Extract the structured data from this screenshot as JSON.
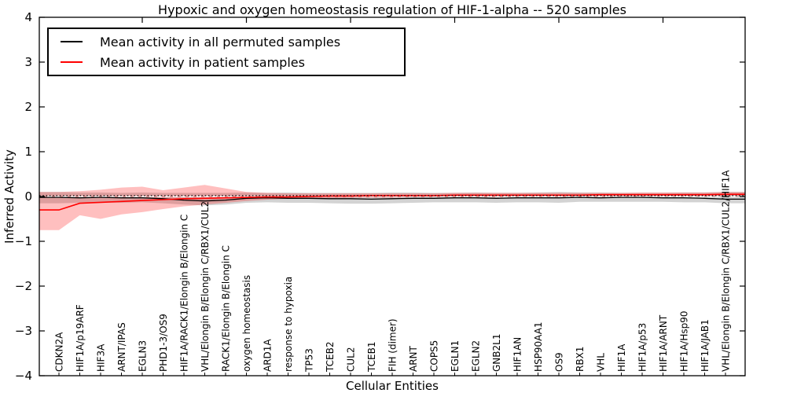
{
  "figure": {
    "background": "#ffffff"
  },
  "legend": {
    "entries": [
      {
        "label": "Mean activity in all permuted samples",
        "color": "#000000"
      },
      {
        "label": "Mean activity in patient samples",
        "color": "#ff0000"
      }
    ]
  },
  "chart_data": {
    "type": "line",
    "title": "Hypoxic and oxygen homeostasis regulation of HIF-1-alpha -- 520 samples",
    "xlabel": "Cellular Entities",
    "ylabel": "Inferred Activity",
    "ylim": [
      -4,
      4
    ],
    "yticks": [
      4,
      3,
      2,
      1,
      0,
      -1,
      -2,
      -3,
      -4
    ],
    "grid": false,
    "legend_position": "upper left",
    "categories": [
      "CDKN2A",
      "HIF1A/p19ARF",
      "HIF3A",
      "ARNT/IPAS",
      "EGLN3",
      "PHD1-3/OS9",
      "HIF1A/RACK1/Elongin B/Elongin C",
      "VHL/Elongin B/Elongin C/RBX1/CUL2",
      "RACK1/Elongin B/Elongin C",
      "oxygen homeostasis",
      "ARD1A",
      "response to hypoxia",
      "TP53",
      "TCEB2",
      "CUL2",
      "TCEB1",
      "FIH (dimer)",
      "ARNT",
      "COPS5",
      "EGLN1",
      "EGLN2",
      "GNB2L1",
      "HIF1AN",
      "HSP90AA1",
      "OS9",
      "RBX1",
      "VHL",
      "HIF1A",
      "HIF1A/p53",
      "HIF1A/ARNT",
      "HIF1A/Hsp90",
      "HIF1A/JAB1",
      "VHL/Elongin B/Elongin C/RBX1/CUL2/HIF1A"
    ],
    "series": [
      {
        "name": "Mean activity in all permuted samples",
        "color": "#000000",
        "values": [
          -0.02,
          -0.03,
          -0.02,
          -0.03,
          -0.03,
          -0.05,
          -0.08,
          -0.1,
          -0.08,
          -0.04,
          -0.03,
          -0.04,
          -0.04,
          -0.05,
          -0.05,
          -0.06,
          -0.05,
          -0.04,
          -0.04,
          -0.03,
          -0.03,
          -0.04,
          -0.03,
          -0.03,
          -0.03,
          -0.02,
          -0.03,
          -0.02,
          -0.02,
          -0.03,
          -0.03,
          -0.04,
          -0.06
        ]
      },
      {
        "name": "Mean activity in patient samples",
        "color": "#ff0000",
        "values": [
          -0.3,
          -0.15,
          -0.13,
          -0.11,
          -0.09,
          -0.07,
          -0.05,
          -0.04,
          -0.03,
          -0.02,
          -0.01,
          -0.01,
          0.0,
          0.01,
          0.01,
          0.02,
          0.02,
          0.02,
          0.02,
          0.03,
          0.03,
          0.03,
          0.03,
          0.03,
          0.03,
          0.03,
          0.04,
          0.04,
          0.04,
          0.04,
          0.04,
          0.04,
          0.05
        ]
      }
    ],
    "bands": [
      {
        "name": "permuted-std-band",
        "color": "rgba(110,110,110,0.30)",
        "upper": [
          0.1,
          0.09,
          0.09,
          0.08,
          0.09,
          0.08,
          0.08,
          0.08,
          0.08,
          0.09,
          0.08,
          0.09,
          0.08,
          0.08,
          0.08,
          0.08,
          0.09,
          0.09,
          0.08,
          0.08,
          0.09,
          0.08,
          0.08,
          0.09,
          0.1,
          0.09,
          0.09,
          0.08,
          0.08,
          0.08,
          0.09,
          0.09,
          0.1
        ],
        "lower": [
          -0.15,
          -0.14,
          -0.13,
          -0.14,
          -0.13,
          -0.15,
          -0.18,
          -0.2,
          -0.18,
          -0.14,
          -0.13,
          -0.14,
          -0.14,
          -0.15,
          -0.16,
          -0.16,
          -0.15,
          -0.14,
          -0.13,
          -0.13,
          -0.13,
          -0.14,
          -0.13,
          -0.13,
          -0.14,
          -0.12,
          -0.12,
          -0.12,
          -0.12,
          -0.12,
          -0.13,
          -0.13,
          -0.15
        ]
      },
      {
        "name": "patient-std-band",
        "color": "rgba(255,0,0,0.25)",
        "upper": [
          0.1,
          0.12,
          0.15,
          0.2,
          0.22,
          0.14,
          0.2,
          0.26,
          0.18,
          0.1,
          0.08,
          0.07,
          0.07,
          0.07,
          0.07,
          0.07,
          0.07,
          0.07,
          0.07,
          0.08,
          0.08,
          0.08,
          0.08,
          0.08,
          0.08,
          0.08,
          0.08,
          0.08,
          0.09,
          0.09,
          0.09,
          0.09,
          0.1
        ],
        "lower": [
          -0.75,
          -0.42,
          -0.5,
          -0.4,
          -0.35,
          -0.28,
          -0.22,
          -0.18,
          -0.14,
          -0.1,
          -0.07,
          -0.05,
          -0.04,
          -0.04,
          -0.03,
          -0.03,
          -0.03,
          -0.02,
          -0.02,
          -0.02,
          -0.02,
          -0.02,
          -0.01,
          -0.01,
          -0.01,
          -0.01,
          -0.01,
          0.0,
          0.0,
          0.0,
          0.0,
          0.0,
          0.0
        ]
      }
    ],
    "reference_lines": [
      {
        "name": "zero-dashed-line",
        "value": 0,
        "color": "#ffffff",
        "style": "dashed"
      },
      {
        "name": "zero-dotted-line",
        "value": 0.02,
        "color": "#000000",
        "style": "dotted"
      }
    ]
  }
}
